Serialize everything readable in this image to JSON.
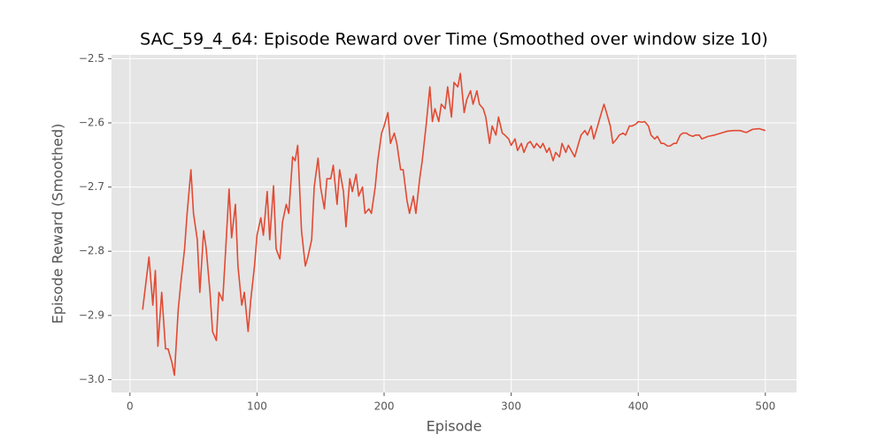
{
  "chart_data": {
    "type": "line",
    "title": "SAC_59_4_64: Episode Reward over Time (Smoothed over window size 10)",
    "x_label": "Episode",
    "y_label": "Episode Reward (Smoothed)",
    "x": [
      10,
      15,
      18,
      20,
      22,
      25,
      28,
      30,
      33,
      35,
      38,
      40,
      43,
      45,
      48,
      50,
      53,
      55,
      58,
      60,
      63,
      65,
      68,
      70,
      73,
      75,
      78,
      80,
      83,
      85,
      88,
      90,
      93,
      95,
      98,
      100,
      103,
      105,
      108,
      110,
      113,
      115,
      118,
      120,
      123,
      125,
      128,
      130,
      132,
      135,
      138,
      140,
      143,
      145,
      148,
      150,
      153,
      155,
      158,
      160,
      163,
      165,
      168,
      170,
      173,
      175,
      178,
      180,
      183,
      185,
      188,
      190,
      193,
      195,
      198,
      200,
      203,
      205,
      208,
      210,
      213,
      215,
      218,
      220,
      223,
      225,
      228,
      230,
      233,
      236,
      238,
      240,
      243,
      245,
      248,
      250,
      253,
      255,
      258,
      260,
      263,
      265,
      268,
      270,
      273,
      275,
      278,
      280,
      283,
      285,
      288,
      290,
      293,
      295,
      298,
      300,
      303,
      305,
      308,
      310,
      313,
      315,
      318,
      320,
      323,
      325,
      328,
      330,
      333,
      335,
      338,
      340,
      343,
      345,
      348,
      350,
      353,
      355,
      358,
      360,
      363,
      365,
      368,
      370,
      373,
      375,
      378,
      380,
      383,
      385,
      388,
      390,
      393,
      395,
      398,
      400,
      403,
      405,
      408,
      410,
      413,
      415,
      418,
      420,
      423,
      425,
      428,
      430,
      433,
      435,
      438,
      440,
      443,
      445,
      448,
      450,
      455,
      460,
      465,
      470,
      475,
      480,
      485,
      490,
      495,
      500
    ],
    "series": [
      {
        "name": "Episode Reward (Smoothed)",
        "color": "#e24a33",
        "values": [
          -2.891,
          -2.809,
          -2.884,
          -2.83,
          -2.948,
          -2.864,
          -2.952,
          -2.952,
          -2.973,
          -2.993,
          -2.891,
          -2.85,
          -2.796,
          -2.741,
          -2.673,
          -2.741,
          -2.782,
          -2.864,
          -2.768,
          -2.796,
          -2.864,
          -2.925,
          -2.939,
          -2.864,
          -2.877,
          -2.809,
          -2.703,
          -2.779,
          -2.727,
          -2.823,
          -2.884,
          -2.864,
          -2.925,
          -2.877,
          -2.823,
          -2.775,
          -2.748,
          -2.775,
          -2.707,
          -2.782,
          -2.698,
          -2.796,
          -2.812,
          -2.755,
          -2.727,
          -2.741,
          -2.653,
          -2.659,
          -2.635,
          -2.768,
          -2.823,
          -2.809,
          -2.782,
          -2.7,
          -2.655,
          -2.7,
          -2.734,
          -2.687,
          -2.687,
          -2.666,
          -2.727,
          -2.673,
          -2.707,
          -2.762,
          -2.687,
          -2.707,
          -2.68,
          -2.714,
          -2.7,
          -2.741,
          -2.734,
          -2.741,
          -2.7,
          -2.659,
          -2.616,
          -2.605,
          -2.584,
          -2.632,
          -2.616,
          -2.632,
          -2.673,
          -2.673,
          -2.721,
          -2.741,
          -2.714,
          -2.741,
          -2.687,
          -2.659,
          -2.605,
          -2.544,
          -2.598,
          -2.578,
          -2.598,
          -2.571,
          -2.578,
          -2.544,
          -2.591,
          -2.537,
          -2.544,
          -2.523,
          -2.584,
          -2.564,
          -2.55,
          -2.571,
          -2.55,
          -2.571,
          -2.578,
          -2.591,
          -2.632,
          -2.605,
          -2.619,
          -2.591,
          -2.616,
          -2.619,
          -2.625,
          -2.635,
          -2.625,
          -2.643,
          -2.632,
          -2.646,
          -2.632,
          -2.629,
          -2.639,
          -2.632,
          -2.639,
          -2.632,
          -2.646,
          -2.639,
          -2.659,
          -2.646,
          -2.653,
          -2.632,
          -2.646,
          -2.635,
          -2.646,
          -2.653,
          -2.632,
          -2.619,
          -2.612,
          -2.619,
          -2.605,
          -2.625,
          -2.605,
          -2.591,
          -2.571,
          -2.584,
          -2.605,
          -2.632,
          -2.625,
          -2.619,
          -2.616,
          -2.619,
          -2.605,
          -2.605,
          -2.602,
          -2.598,
          -2.599,
          -2.598,
          -2.605,
          -2.619,
          -2.625,
          -2.621,
          -2.632,
          -2.632,
          -2.636,
          -2.636,
          -2.632,
          -2.632,
          -2.619,
          -2.616,
          -2.616,
          -2.619,
          -2.621,
          -2.619,
          -2.619,
          -2.625,
          -2.621,
          -2.619,
          -2.616,
          -2.613,
          -2.612,
          -2.612,
          -2.615,
          -2.61,
          -2.609,
          -2.612
        ]
      }
    ],
    "xlim": [
      -14.5,
      524.5
    ],
    "ylim": [
      -3.02,
      -2.494
    ],
    "xticks": [
      0,
      100,
      200,
      300,
      400,
      500
    ],
    "yticks": [
      {
        "value": -3.0,
        "label": "−3.0"
      },
      {
        "value": -2.9,
        "label": "−2.9"
      },
      {
        "value": -2.8,
        "label": "−2.8"
      },
      {
        "value": -2.7,
        "label": "−2.7"
      },
      {
        "value": -2.6,
        "label": "−2.6"
      },
      {
        "value": -2.5,
        "label": "−2.5"
      }
    ],
    "grid": true
  }
}
